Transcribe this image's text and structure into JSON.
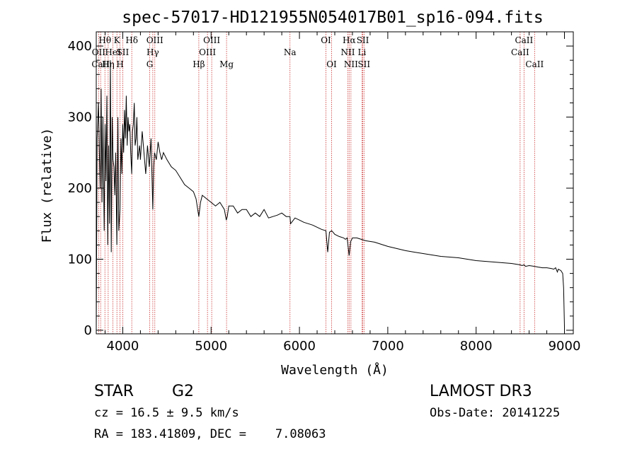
{
  "chart_data": {
    "type": "line",
    "title": "spec-57017-HD121955N054017B01_sp16-094.fits",
    "xlabel": "Wavelength (Å)",
    "ylabel": "Flux (relative)",
    "xlim": [
      3700,
      9100
    ],
    "ylim": [
      -5,
      420
    ],
    "x_ticks": [
      4000,
      5000,
      6000,
      7000,
      8000,
      9000
    ],
    "x_tick_labels": [
      "4000",
      "5000",
      "6000",
      "7000",
      "8000",
      "9000"
    ],
    "y_ticks": [
      0,
      100,
      200,
      300,
      400
    ],
    "y_tick_labels": [
      "0",
      "100",
      "200",
      "300",
      "400"
    ],
    "series": [
      {
        "name": "spectrum",
        "x": [
          3700,
          3710,
          3725,
          3735,
          3745,
          3755,
          3765,
          3775,
          3790,
          3800,
          3810,
          3820,
          3830,
          3840,
          3850,
          3860,
          3870,
          3880,
          3890,
          3900,
          3910,
          3920,
          3933,
          3945,
          3955,
          3968,
          3980,
          3990,
          4000,
          4010,
          4020,
          4030,
          4040,
          4050,
          4060,
          4070,
          4080,
          4090,
          4101,
          4110,
          4120,
          4130,
          4140,
          4150,
          4160,
          4170,
          4180,
          4190,
          4200,
          4220,
          4240,
          4260,
          4280,
          4300,
          4320,
          4340,
          4350,
          4360,
          4380,
          4400,
          4420,
          4440,
          4460,
          4480,
          4500,
          4550,
          4600,
          4650,
          4700,
          4750,
          4800,
          4830,
          4861,
          4880,
          4900,
          4950,
          5000,
          5050,
          5100,
          5150,
          5172,
          5183,
          5200,
          5250,
          5300,
          5350,
          5400,
          5450,
          5500,
          5550,
          5600,
          5650,
          5700,
          5750,
          5800,
          5850,
          5893,
          5900,
          5950,
          6000,
          6050,
          6100,
          6150,
          6200,
          6250,
          6300,
          6320,
          6340,
          6365,
          6380,
          6400,
          6450,
          6500,
          6520,
          6540,
          6563,
          6580,
          6600,
          6650,
          6700,
          6750,
          6800,
          6850,
          6900,
          6950,
          7000,
          7100,
          7200,
          7300,
          7400,
          7500,
          7600,
          7700,
          7800,
          7900,
          8000,
          8100,
          8200,
          8300,
          8400,
          8450,
          8498,
          8520,
          8542,
          8560,
          8600,
          8662,
          8700,
          8750,
          8800,
          8850,
          8880,
          8900,
          8920,
          8930,
          8960,
          8980,
          8990,
          9000
        ],
        "values": [
          0,
          270,
          320,
          250,
          200,
          340,
          180,
          300,
          140,
          290,
          210,
          330,
          120,
          260,
          150,
          380,
          110,
          300,
          240,
          230,
          190,
          250,
          120,
          300,
          140,
          170,
          270,
          220,
          290,
          250,
          310,
          270,
          330,
          260,
          300,
          280,
          290,
          250,
          220,
          280,
          290,
          320,
          260,
          270,
          300,
          240,
          250,
          260,
          240,
          280,
          250,
          220,
          260,
          230,
          270,
          170,
          230,
          250,
          240,
          265,
          250,
          240,
          250,
          245,
          240,
          230,
          225,
          215,
          205,
          200,
          195,
          185,
          160,
          180,
          190,
          185,
          180,
          175,
          180,
          170,
          155,
          160,
          175,
          175,
          165,
          170,
          170,
          160,
          165,
          160,
          170,
          158,
          160,
          162,
          165,
          160,
          160,
          150,
          158,
          155,
          152,
          150,
          148,
          145,
          142,
          140,
          110,
          138,
          140,
          138,
          135,
          132,
          130,
          128,
          130,
          105,
          125,
          130,
          130,
          128,
          126,
          125,
          124,
          122,
          120,
          118,
          115,
          112,
          110,
          108,
          106,
          104,
          103,
          102,
          100,
          98,
          97,
          96,
          95,
          94,
          93,
          92,
          91,
          92,
          90,
          91,
          90,
          89,
          88,
          88,
          87,
          86,
          88,
          82,
          86,
          84,
          80,
          60,
          5
        ]
      }
    ],
    "reference_lines": [
      {
        "label": "Hθ",
        "x": 3798,
        "row": 1
      },
      {
        "label": "OII",
        "x": 3727,
        "row": 2
      },
      {
        "label": "CaII",
        "x": 3750,
        "row": 3
      },
      {
        "label": "Hη",
        "x": 3835,
        "row": 3
      },
      {
        "label": "HeI",
        "x": 3889,
        "row": 2
      },
      {
        "label": "K",
        "x": 3934,
        "row": 1
      },
      {
        "label": "SII",
        "x": 4000,
        "row": 2
      },
      {
        "label": "H",
        "x": 3969,
        "row": 3
      },
      {
        "label": "Hδ",
        "x": 4102,
        "row": 1
      },
      {
        "label": "OIII",
        "x": 4363,
        "row": 1
      },
      {
        "label": "Hγ",
        "x": 4340,
        "row": 2
      },
      {
        "label": "G",
        "x": 4305,
        "row": 3
      },
      {
        "label": "Hβ",
        "x": 4861,
        "row": 3
      },
      {
        "label": "OIII",
        "x": 5007,
        "row": 1
      },
      {
        "label": "OIII",
        "x": 4959,
        "row": 2
      },
      {
        "label": "Mg",
        "x": 5175,
        "row": 3
      },
      {
        "label": "Na",
        "x": 5893,
        "row": 2
      },
      {
        "label": "OI",
        "x": 6300,
        "row": 1
      },
      {
        "label": "OI",
        "x": 6364,
        "row": 3
      },
      {
        "label": "Hα",
        "x": 6563,
        "row": 1
      },
      {
        "label": "NII",
        "x": 6548,
        "row": 2
      },
      {
        "label": "NII",
        "x": 6583,
        "row": 3
      },
      {
        "label": "SII",
        "x": 6717,
        "row": 1
      },
      {
        "label": "Li",
        "x": 6708,
        "row": 2
      },
      {
        "label": "SII",
        "x": 6731,
        "row": 3
      },
      {
        "label": "CaII",
        "x": 8542,
        "row": 1
      },
      {
        "label": "CaII",
        "x": 8498,
        "row": 2
      },
      {
        "label": "CaII",
        "x": 8662,
        "row": 3
      }
    ],
    "grid": false,
    "line_color": "#000000",
    "reference_line_color": "#cc3333"
  },
  "info": {
    "class": "STAR",
    "subclass": "G2",
    "survey": "LAMOST DR3",
    "redshift": "cz = 16.5 ± 9.5 km/s",
    "obs_date": "Obs-Date: 20141225",
    "coords": "RA = 183.41809, DEC =    7.08063"
  }
}
